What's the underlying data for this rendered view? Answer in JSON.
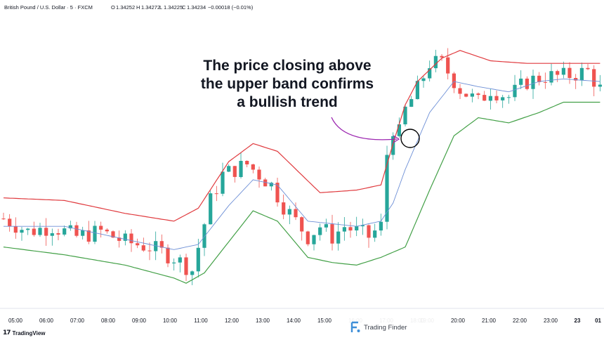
{
  "header": {
    "symbol": "British Pound / U.S. Dollar · 5 · FXCM",
    "open_label": "O",
    "open": "1.34252",
    "high_label": "H",
    "high": "1.34272",
    "low_label": "L",
    "low": "1.34225",
    "close_label": "C",
    "close": "1.34234",
    "change": "−0.00018 (−0.01%)"
  },
  "annotation": {
    "lines": [
      "The price closing above",
      "the upper band confirms",
      "a bullish trend"
    ]
  },
  "branding": {
    "platform": "TradingView",
    "platform_icon": "tradingview-logo-icon",
    "watermark": "Trading Finder",
    "watermark_icon": "trading-finder-logo-icon"
  },
  "colors": {
    "up": "#26a69a",
    "down": "#ef5350",
    "upper_band": "#e03a3e",
    "middle_band": "#6d8fd6",
    "lower_band": "#43a047",
    "arrow": "#9c27b0",
    "circle": "#000000"
  },
  "chart_data": {
    "type": "candlestick",
    "overlay": "bollinger-bands",
    "x_tick_labels": [
      "05:00",
      "06:00",
      "07:00",
      "08:00",
      "09:00",
      "10:00",
      "11:00",
      "12:00",
      "13:00",
      "14:00",
      "15:00",
      "16:00",
      "17:00",
      "18:00",
      "19:00",
      "20:00",
      "21:00",
      "22:00",
      "23:00",
      "23",
      "01"
    ],
    "grid": false,
    "price_path": [
      [
        0,
        1.3435
      ],
      [
        4,
        1.343
      ],
      [
        8,
        1.3432
      ],
      [
        12,
        1.3428
      ],
      [
        16,
        1.343
      ],
      [
        20,
        1.3426
      ],
      [
        24,
        1.3424
      ],
      [
        28,
        1.342
      ],
      [
        31,
        1.3415
      ],
      [
        34,
        1.3442
      ],
      [
        36,
        1.3452
      ],
      [
        40,
        1.3456
      ],
      [
        44,
        1.3448
      ],
      [
        46,
        1.344
      ],
      [
        48,
        1.3434
      ],
      [
        50,
        1.3428
      ],
      [
        52,
        1.3432
      ],
      [
        54,
        1.3428
      ],
      [
        56,
        1.3432
      ],
      [
        58,
        1.343
      ],
      [
        60,
        1.3428
      ],
      [
        62,
        1.3432
      ],
      [
        63,
        1.346
      ],
      [
        64,
        1.347
      ],
      [
        65,
        1.3468
      ],
      [
        66,
        1.3477
      ],
      [
        68,
        1.3485
      ],
      [
        70,
        1.3495
      ],
      [
        72,
        1.3495
      ],
      [
        75,
        1.3485
      ],
      [
        78,
        1.348
      ],
      [
        80,
        1.3485
      ],
      [
        83,
        1.3482
      ],
      [
        86,
        1.3488
      ],
      [
        89,
        1.349
      ],
      [
        92,
        1.349
      ],
      [
        96,
        1.3492
      ],
      [
        98,
        1.3485
      ]
    ],
    "upper_band": [
      [
        0,
        1.3443
      ],
      [
        10,
        1.3442
      ],
      [
        20,
        1.3437
      ],
      [
        28,
        1.3434
      ],
      [
        32,
        1.3439
      ],
      [
        37,
        1.3457
      ],
      [
        41,
        1.3464
      ],
      [
        45,
        1.3461
      ],
      [
        52,
        1.3445
      ],
      [
        58,
        1.3446
      ],
      [
        62,
        1.3448
      ],
      [
        64,
        1.3464
      ],
      [
        66,
        1.3479
      ],
      [
        68,
        1.3488
      ],
      [
        72,
        1.3497
      ],
      [
        75,
        1.35
      ],
      [
        80,
        1.3496
      ],
      [
        86,
        1.3495
      ],
      [
        92,
        1.3495
      ],
      [
        98,
        1.3495
      ]
    ],
    "middle_band": [
      [
        0,
        1.3432
      ],
      [
        10,
        1.3432
      ],
      [
        20,
        1.3427
      ],
      [
        28,
        1.3423
      ],
      [
        32,
        1.3425
      ],
      [
        37,
        1.344
      ],
      [
        41,
        1.345
      ],
      [
        45,
        1.3448
      ],
      [
        50,
        1.3434
      ],
      [
        58,
        1.3432
      ],
      [
        62,
        1.3434
      ],
      [
        64,
        1.3441
      ],
      [
        66,
        1.3454
      ],
      [
        70,
        1.3476
      ],
      [
        74,
        1.3488
      ],
      [
        78,
        1.3486
      ],
      [
        83,
        1.3484
      ],
      [
        88,
        1.3488
      ],
      [
        92,
        1.3489
      ],
      [
        98,
        1.3488
      ]
    ],
    "lower_band": [
      [
        0,
        1.3424
      ],
      [
        10,
        1.3421
      ],
      [
        20,
        1.3417
      ],
      [
        28,
        1.3412
      ],
      [
        30,
        1.341
      ],
      [
        33,
        1.3414
      ],
      [
        37,
        1.3426
      ],
      [
        41,
        1.3438
      ],
      [
        45,
        1.3434
      ],
      [
        50,
        1.342
      ],
      [
        54,
        1.3418
      ],
      [
        58,
        1.3417
      ],
      [
        62,
        1.342
      ],
      [
        66,
        1.3424
      ],
      [
        70,
        1.3446
      ],
      [
        74,
        1.3467
      ],
      [
        78,
        1.3474
      ],
      [
        83,
        1.3472
      ],
      [
        88,
        1.3476
      ],
      [
        92,
        1.348
      ],
      [
        98,
        1.348
      ]
    ]
  }
}
